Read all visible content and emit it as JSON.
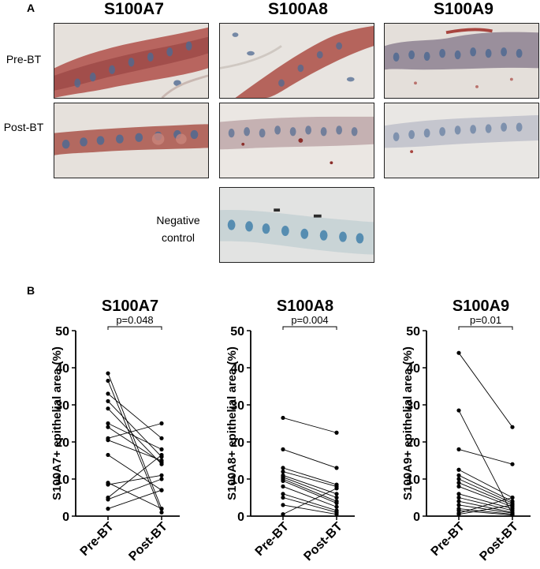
{
  "panel_a": {
    "label": "A",
    "columns": [
      "S100A7",
      "S100A8",
      "S100A9"
    ],
    "rows": [
      "Pre-BT",
      "Post-BT"
    ],
    "negative_control": [
      "Negative",
      "control"
    ],
    "colors": {
      "stroma": "#e6e1dc",
      "stain": "#a8453f",
      "nuclei": "#4f6a92",
      "negative_nuclei": "#4a86ae"
    }
  },
  "panel_b": {
    "label": "B"
  },
  "chart_data": [
    {
      "type": "line",
      "title": "S100A7",
      "ylabel": "S100A7+ epithelial area (%)",
      "categories": [
        "Pre-BT",
        "Post-BT"
      ],
      "ylim": [
        0,
        50
      ],
      "yticks": [
        0,
        10,
        20,
        30,
        40,
        50
      ],
      "annotation": "p=0.048",
      "pairs": [
        [
          38.5,
          2
        ],
        [
          36.5,
          1
        ],
        [
          33,
          21
        ],
        [
          31,
          16
        ],
        [
          29,
          14
        ],
        [
          25,
          18
        ],
        [
          24,
          14.5
        ],
        [
          21,
          25
        ],
        [
          20.5,
          15
        ],
        [
          16.5,
          7
        ],
        [
          9,
          2
        ],
        [
          8.5,
          11
        ],
        [
          5,
          16.5
        ],
        [
          4.5,
          10
        ],
        [
          2,
          7
        ]
      ]
    },
    {
      "type": "line",
      "title": "S100A8",
      "ylabel": "S100A8+ epithelial area (%)",
      "categories": [
        "Pre-BT",
        "Post-BT"
      ],
      "ylim": [
        0,
        50
      ],
      "yticks": [
        0,
        10,
        20,
        30,
        40,
        50
      ],
      "annotation": "p=0.004",
      "pairs": [
        [
          26.5,
          22.5
        ],
        [
          18,
          13
        ],
        [
          13,
          8.5
        ],
        [
          12,
          8
        ],
        [
          11,
          6
        ],
        [
          10.5,
          5
        ],
        [
          10,
          4
        ],
        [
          9.5,
          3.5
        ],
        [
          8,
          2.5
        ],
        [
          6,
          1.5
        ],
        [
          5,
          1
        ],
        [
          3,
          0.5
        ],
        [
          0.5,
          7.5
        ]
      ]
    },
    {
      "type": "line",
      "title": "S100A9",
      "ylabel": "S100A9+ epithelial area (%)",
      "categories": [
        "Pre-BT",
        "Post-BT"
      ],
      "ylim": [
        0,
        50
      ],
      "yticks": [
        0,
        10,
        20,
        30,
        40,
        50
      ],
      "annotation": "p=0.01",
      "pairs": [
        [
          44,
          24
        ],
        [
          28.5,
          0.5
        ],
        [
          18,
          14
        ],
        [
          12.5,
          5
        ],
        [
          11,
          4
        ],
        [
          10,
          3.5
        ],
        [
          9,
          3
        ],
        [
          8,
          2.5
        ],
        [
          6,
          2
        ],
        [
          5,
          1.5
        ],
        [
          4,
          1
        ],
        [
          3,
          0.8
        ],
        [
          2,
          0.5
        ],
        [
          1.5,
          0.3
        ],
        [
          0.8,
          5
        ],
        [
          0.5,
          3
        ]
      ]
    }
  ]
}
